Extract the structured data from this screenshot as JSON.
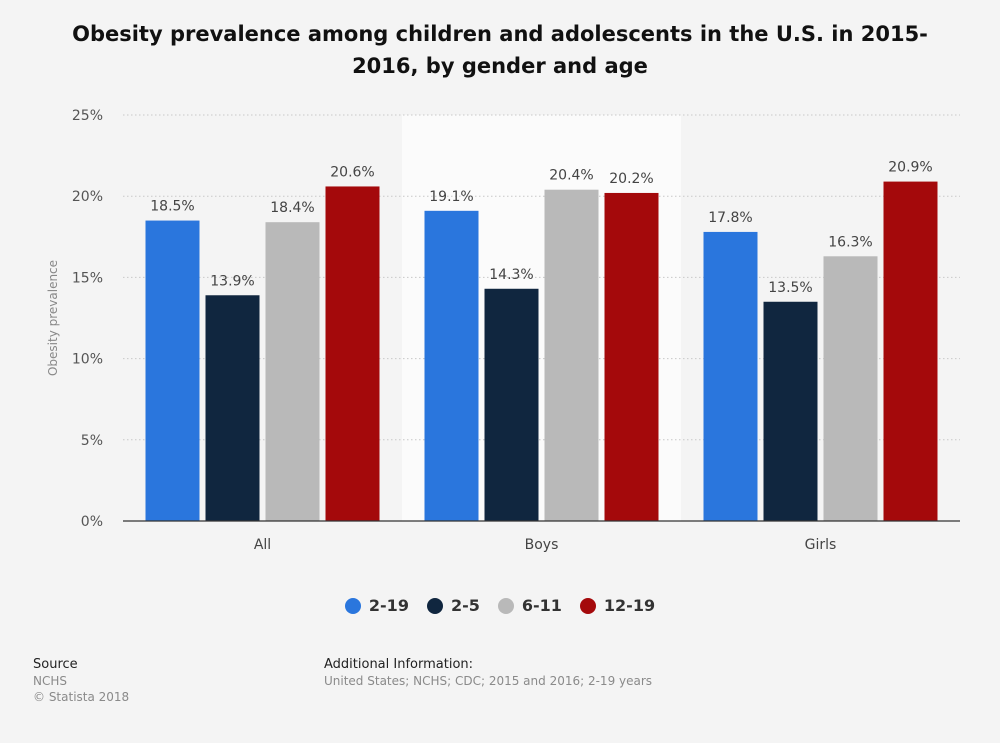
{
  "chart_data": {
    "type": "bar",
    "title": "Obesity prevalence among children and adolescents in the U.S. in 2015-2016, by gender and age",
    "ylabel": "Obesity prevalence",
    "xlabel": "",
    "categories": [
      "All",
      "Boys",
      "Girls"
    ],
    "ylim": [
      0,
      25
    ],
    "yticks": [
      0,
      5,
      10,
      15,
      20,
      25
    ],
    "ytick_labels": [
      "0%",
      "5%",
      "10%",
      "15%",
      "20%",
      "25%"
    ],
    "grid": true,
    "legend_position": "bottom",
    "highlighted_category": "Boys",
    "series": [
      {
        "name": "2-19",
        "color": "#2a76dd",
        "values": [
          18.5,
          19.1,
          17.8
        ],
        "labels": [
          "18.5%",
          "19.1%",
          "17.8%"
        ]
      },
      {
        "name": "2-5",
        "color": "#10263f",
        "values": [
          13.9,
          14.3,
          13.5
        ],
        "labels": [
          "13.9%",
          "14.3%",
          "13.5%"
        ]
      },
      {
        "name": "6-11",
        "color": "#b9b9b9",
        "values": [
          18.4,
          20.4,
          16.3
        ],
        "labels": [
          "18.4%",
          "20.4%",
          "16.3%"
        ]
      },
      {
        "name": "12-19",
        "color": "#a4090b",
        "values": [
          20.6,
          20.2,
          20.9
        ],
        "labels": [
          "20.6%",
          "20.2%",
          "20.9%"
        ]
      }
    ]
  },
  "footer": {
    "source_label": "Source",
    "source_value": "NCHS",
    "copyright": "© Statista 2018",
    "additional_label": "Additional Information:",
    "additional_value": "United States; NCHS; CDC; 2015 and 2016; 2-19 years"
  }
}
